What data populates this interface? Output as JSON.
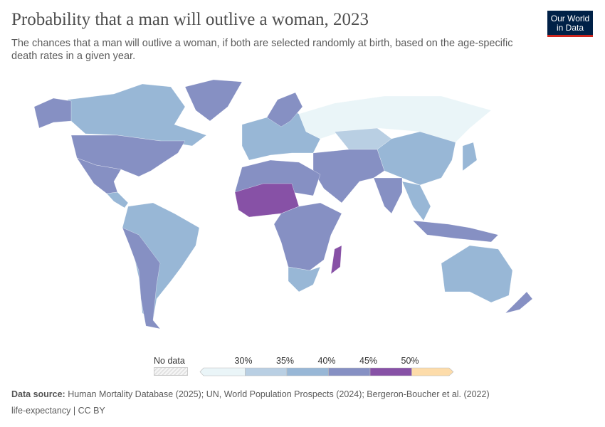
{
  "title": "Probability that a man will outlive a woman, 2023",
  "subtitle": "The chances that a man will outlive a woman, if both are selected randomly at birth, based on the age-specific death rates in a given year.",
  "logo": {
    "line1": "Our World",
    "line2": "in Data",
    "bg": "#002147",
    "accent": "#ce261e"
  },
  "legend": {
    "no_data": "No data",
    "ticks": [
      "30%",
      "35%",
      "40%",
      "45%",
      "50%"
    ],
    "bins": [
      {
        "range": "<30%",
        "color": "#eaf5f8"
      },
      {
        "range": "30-35%",
        "color": "#b9cfe3"
      },
      {
        "range": "35-40%",
        "color": "#98b7d6"
      },
      {
        "range": "40-45%",
        "color": "#8690c3"
      },
      {
        "range": "45-50%",
        "color": "#8751a6"
      },
      {
        "range": ">50%",
        "color": "#fddcaa"
      }
    ]
  },
  "footer": {
    "source_label": "Data source:",
    "source_text": " Human Mortality Database (2025); UN, World Population Prospects (2024); Bergeron-Boucher et al. (2022)",
    "slug": "life-expectancy | CC BY"
  }
}
